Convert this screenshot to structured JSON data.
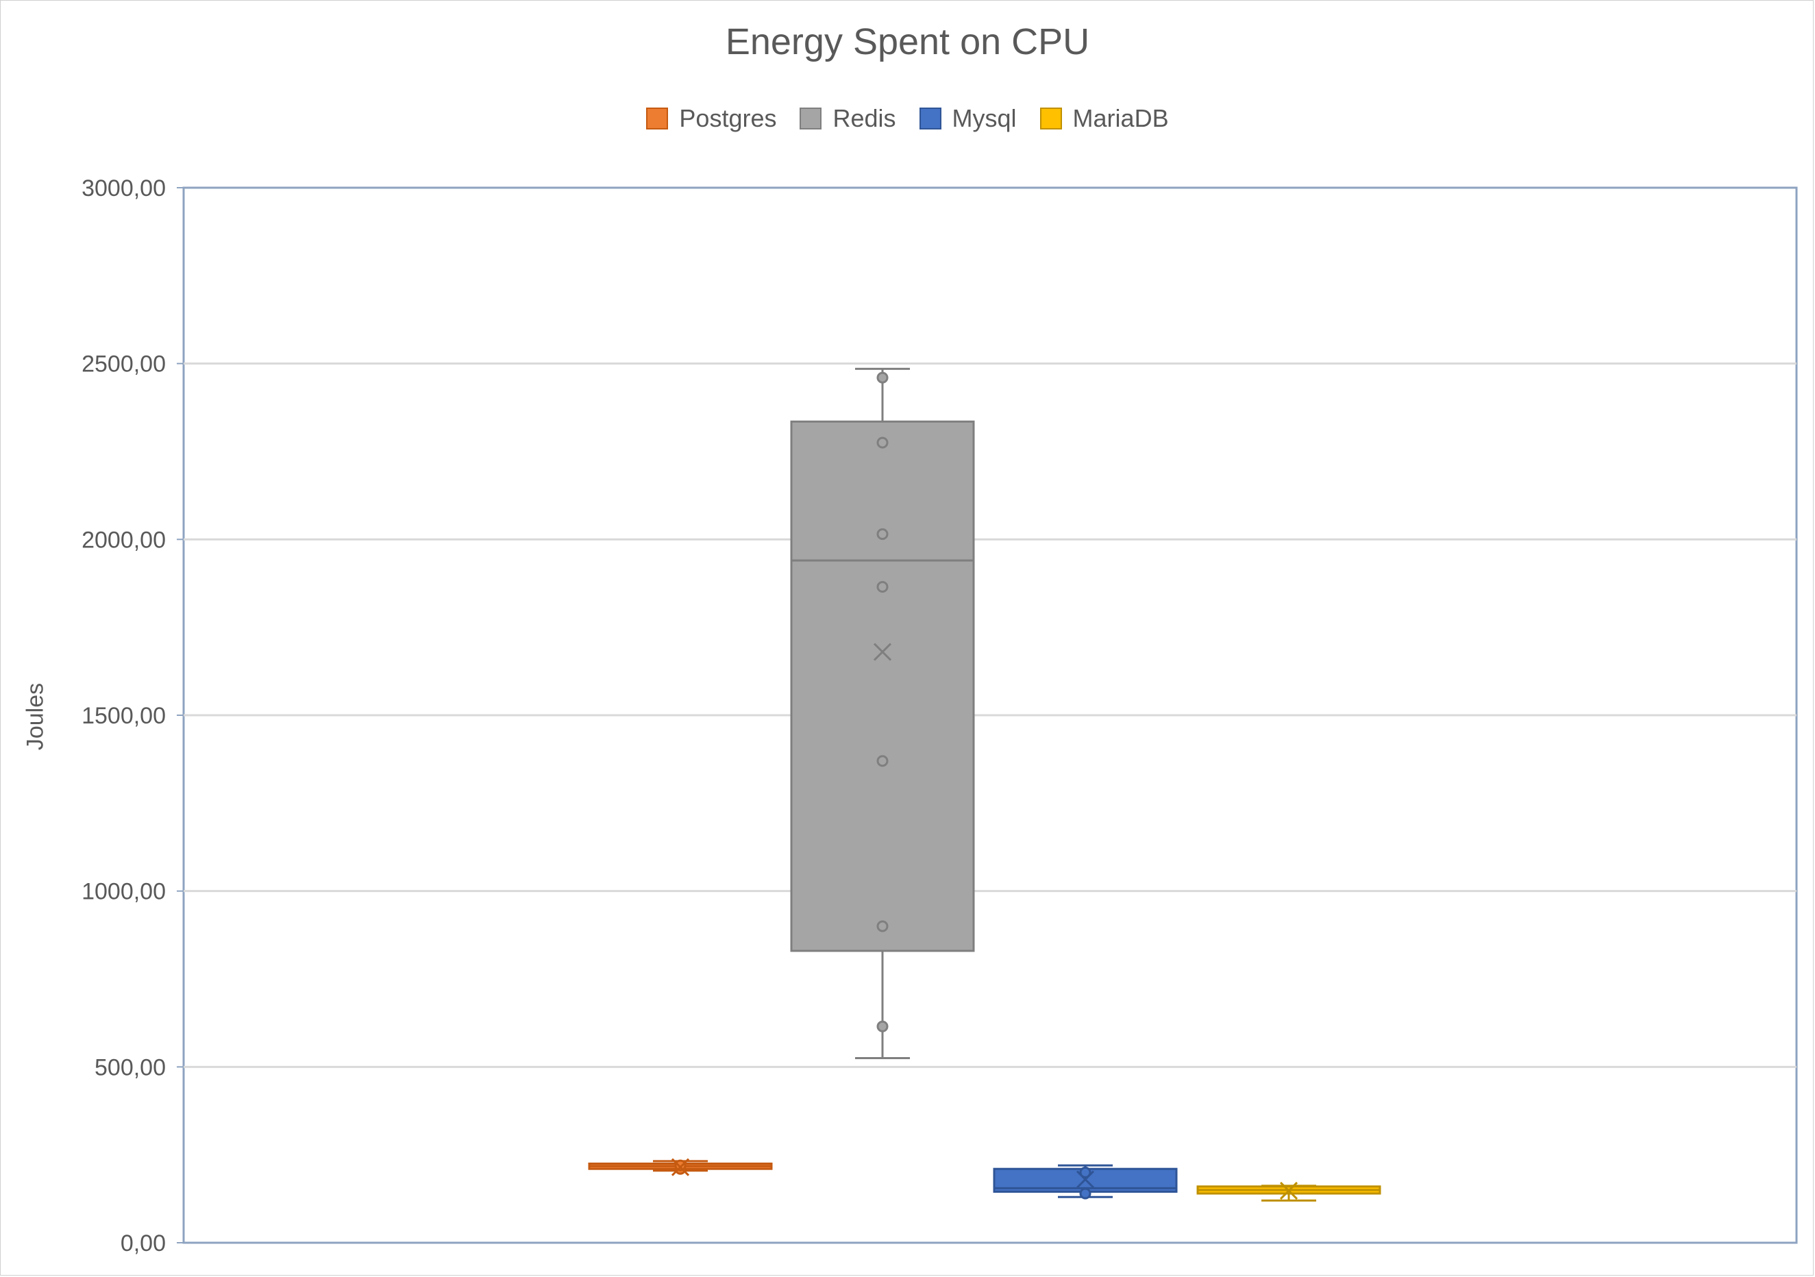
{
  "chart_data": {
    "type": "boxplot",
    "title": "Energy Spent on CPU",
    "xlabel": "",
    "ylabel": "Joules",
    "ylim": [
      0,
      3000
    ],
    "yticks": [
      "0,00",
      "500,00",
      "1000,00",
      "1500,00",
      "2000,00",
      "2500,00",
      "3000,00"
    ],
    "grid": true,
    "legend_position": "top",
    "series": [
      {
        "name": "Postgres",
        "color": "#ED7D31",
        "stroke": "#C55A11",
        "min": 205,
        "q1": 210,
        "median": 218,
        "q3": 225,
        "max": 232,
        "mean": 215,
        "points": [
          210,
          220
        ]
      },
      {
        "name": "Redis",
        "color": "#A5A5A5",
        "stroke": "#7F7F7F",
        "min": 525,
        "q1": 830,
        "median": 1940,
        "q3": 2335,
        "max": 2485,
        "mean": 1680,
        "points": [
          615,
          900,
          1370,
          1865,
          2015,
          2275,
          2460
        ]
      },
      {
        "name": "Mysql",
        "color": "#4472C4",
        "stroke": "#2F5597",
        "min": 130,
        "q1": 145,
        "median": 155,
        "q3": 210,
        "max": 220,
        "mean": 180,
        "points": [
          140,
          200
        ]
      },
      {
        "name": "MariaDB",
        "color": "#FFC000",
        "stroke": "#BF9000",
        "min": 120,
        "q1": 140,
        "median": 150,
        "q3": 160,
        "max": 162,
        "mean": 148,
        "points": []
      }
    ]
  }
}
